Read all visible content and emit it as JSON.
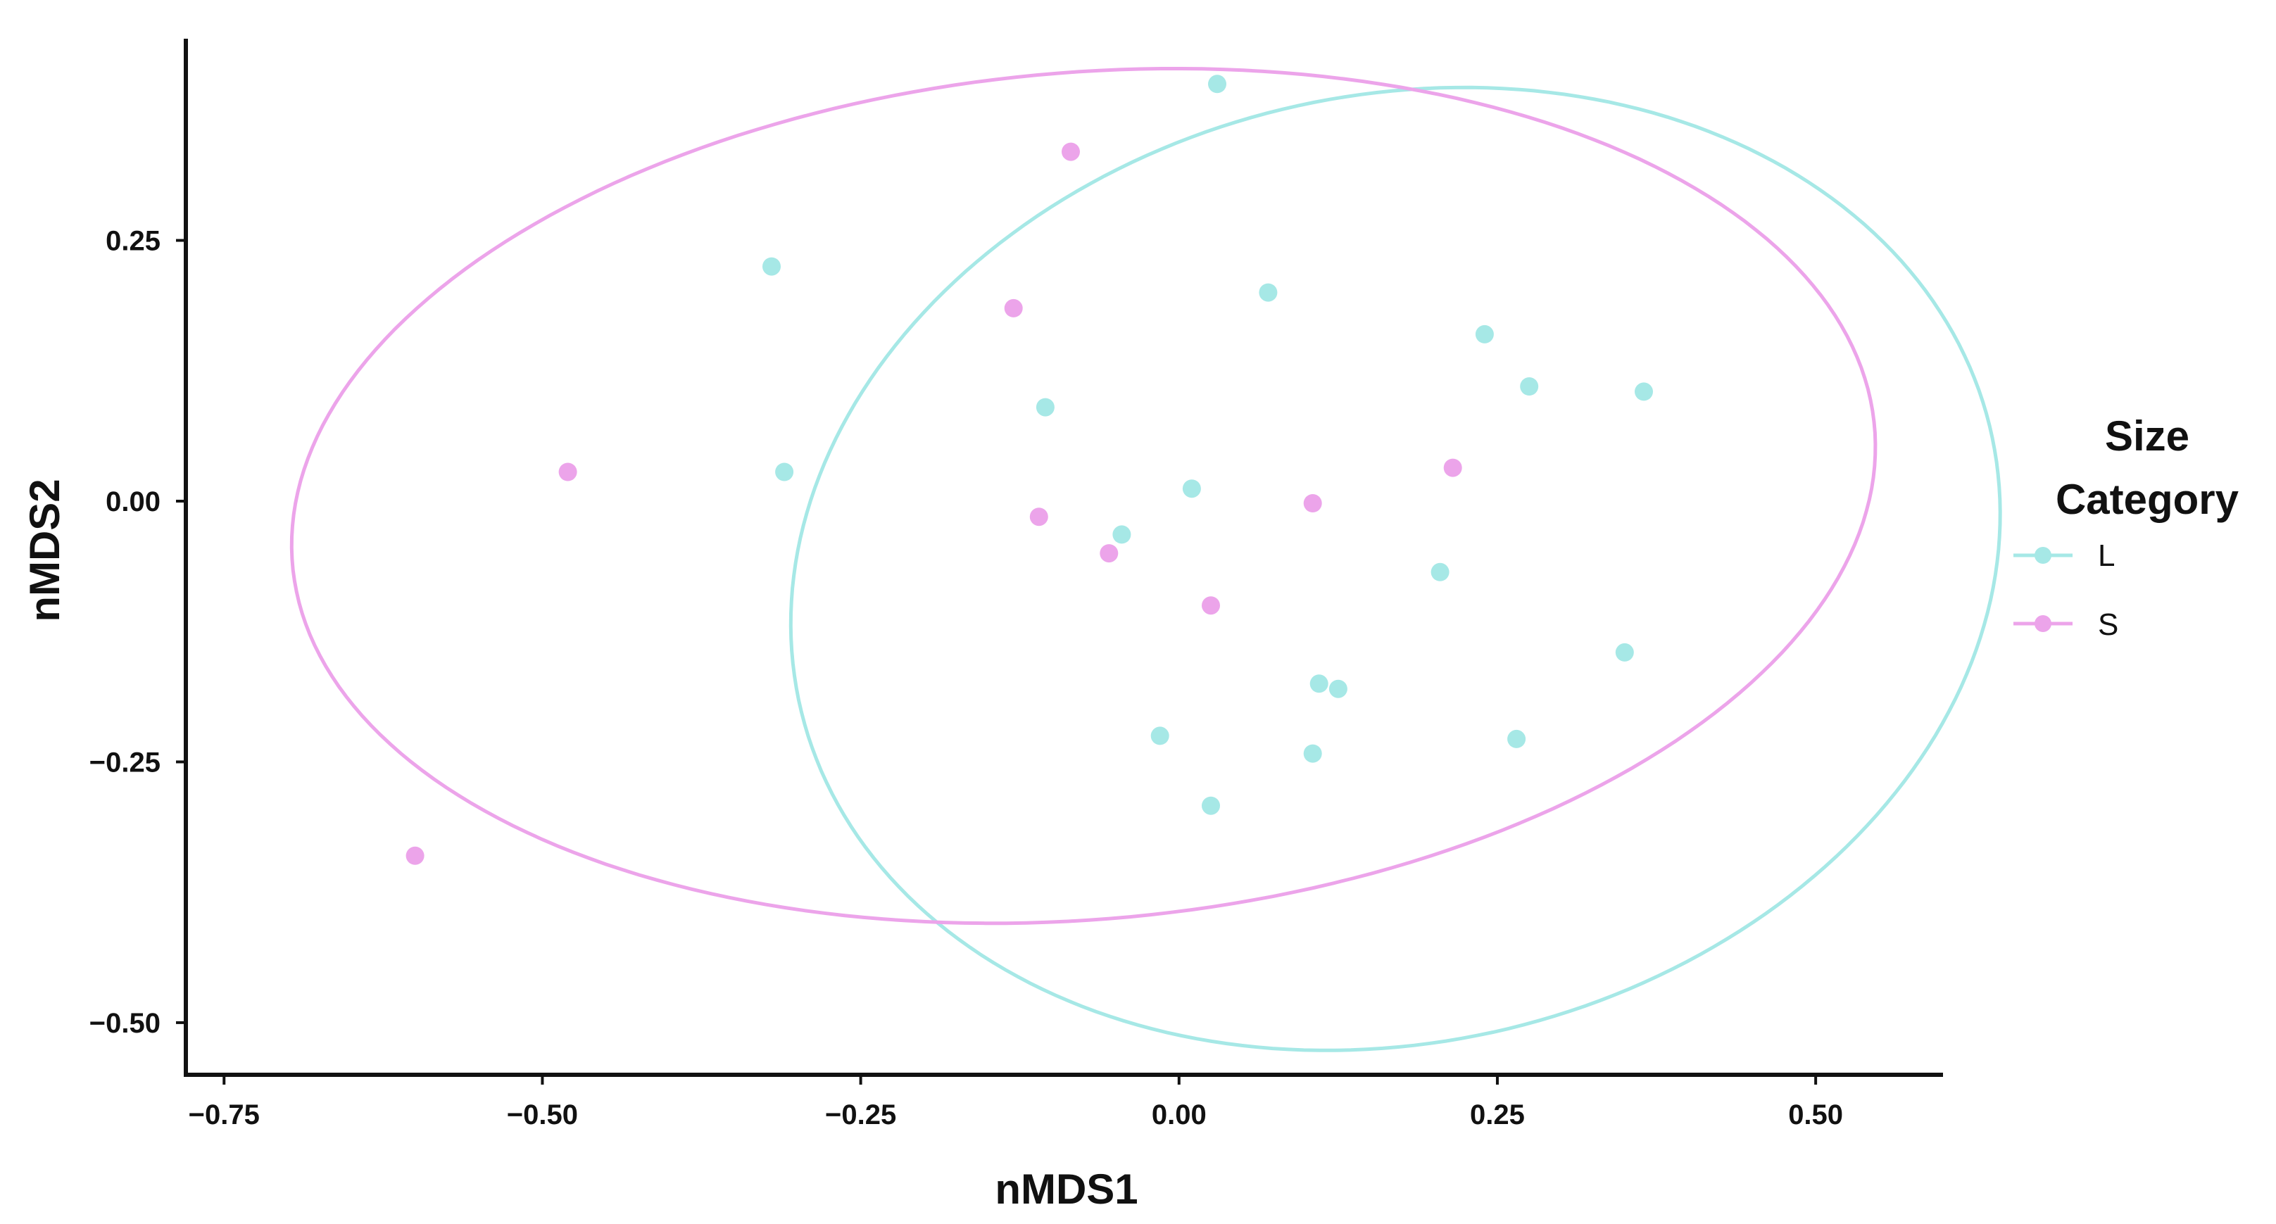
{
  "chart_data": {
    "type": "scatter",
    "xlabel": "nMDS1",
    "ylabel": "nMDS2",
    "xlim": [
      -0.78,
      0.6
    ],
    "ylim": [
      -0.55,
      0.44
    ],
    "x_ticks": [
      -0.75,
      -0.5,
      -0.25,
      0.0,
      0.25,
      0.5
    ],
    "x_tick_labels": [
      "−0.75",
      "−0.50",
      "−0.25",
      "0.00",
      "0.25",
      "0.50"
    ],
    "y_ticks": [
      0.25,
      0.0,
      -0.25,
      -0.5
    ],
    "y_tick_labels": [
      "0.25",
      "0.00",
      "−0.25",
      "−0.50"
    ],
    "grid": false,
    "legend": {
      "title_lines": [
        "Size",
        "Category"
      ],
      "placement": "right"
    },
    "series": [
      {
        "name": "L",
        "color": "#a6e8e6",
        "points": [
          [
            0.03,
            0.4
          ],
          [
            -0.32,
            0.225
          ],
          [
            0.07,
            0.2
          ],
          [
            0.24,
            0.16
          ],
          [
            0.275,
            0.11
          ],
          [
            0.365,
            0.105
          ],
          [
            -0.105,
            0.09
          ],
          [
            -0.31,
            0.028
          ],
          [
            0.01,
            0.012
          ],
          [
            -0.045,
            -0.032
          ],
          [
            0.205,
            -0.068
          ],
          [
            0.35,
            -0.145
          ],
          [
            0.11,
            -0.175
          ],
          [
            0.125,
            -0.18
          ],
          [
            -0.015,
            -0.225
          ],
          [
            0.265,
            -0.228
          ],
          [
            0.105,
            -0.242
          ],
          [
            0.025,
            -0.292
          ]
        ],
        "ellipse": {
          "cx": 0.17,
          "cy": -0.065,
          "rx": 0.495,
          "ry": 0.44,
          "angle_deg": 38
        }
      },
      {
        "name": "S",
        "color": "#eca4ea",
        "points": [
          [
            -0.085,
            0.335
          ],
          [
            -0.13,
            0.185
          ],
          [
            -0.48,
            0.028
          ],
          [
            0.215,
            0.032
          ],
          [
            0.105,
            -0.002
          ],
          [
            -0.11,
            -0.015
          ],
          [
            -0.055,
            -0.05
          ],
          [
            0.025,
            -0.1
          ],
          [
            -0.6,
            -0.34
          ]
        ],
        "ellipse": {
          "cx": -0.075,
          "cy": 0.005,
          "rx": 0.625,
          "ry": 0.405,
          "angle_deg": 7.5
        }
      }
    ]
  }
}
